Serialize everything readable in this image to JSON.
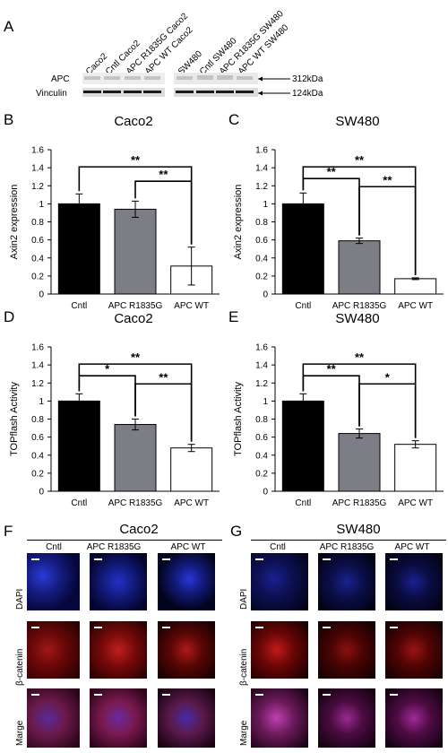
{
  "panels": {
    "A": "A",
    "B": "B",
    "C": "C",
    "D": "D",
    "E": "E",
    "F": "F",
    "G": "G"
  },
  "western_blot": {
    "lanes": [
      "Caco2",
      "Cntl Caco2",
      "APC R1835G Caco2",
      "APC WT Caco2",
      "SW480",
      "Cntl SW480",
      "APC R1835G SW480",
      "APC WT SW480"
    ],
    "rows": [
      {
        "label": "APC",
        "size": "312kDa"
      },
      {
        "label": "Vinculin",
        "size": "124kDa"
      }
    ]
  },
  "chart_data": [
    {
      "type": "bar",
      "title": "Caco2",
      "ylabel": "Axin2 expression",
      "categories": [
        "Cntl",
        "APC R1835G",
        "APC WT"
      ],
      "values": [
        1.0,
        0.94,
        0.31
      ],
      "errors": [
        0.11,
        0.09,
        0.21
      ],
      "colors": [
        "#000000",
        "#7d7d85",
        "#ffffff"
      ],
      "ylim": [
        0,
        1.6
      ],
      "yticks": [
        "0",
        "0.2",
        "0.4",
        "0.6",
        "0.8",
        "1",
        "1.2",
        "1.4",
        "1.6"
      ],
      "significance": [
        {
          "from": 0,
          "to": 2,
          "label": "**"
        },
        {
          "from": 1,
          "to": 2,
          "label": "**"
        }
      ]
    },
    {
      "type": "bar",
      "title": "SW480",
      "ylabel": "Axin2 expression",
      "categories": [
        "Cntl",
        "APC R1835G",
        "APC WT"
      ],
      "values": [
        1.0,
        0.59,
        0.17
      ],
      "errors": [
        0.12,
        0.03,
        0.01
      ],
      "colors": [
        "#000000",
        "#7d7d85",
        "#ffffff"
      ],
      "ylim": [
        0,
        1.6
      ],
      "yticks": [
        "0",
        "0.2",
        "0.4",
        "0.6",
        "0.8",
        "1",
        "1.2",
        "1.4",
        "1.6"
      ],
      "significance": [
        {
          "from": 0,
          "to": 2,
          "label": "**"
        },
        {
          "from": 0,
          "to": 1,
          "label": "**"
        },
        {
          "from": 1,
          "to": 2,
          "label": "**"
        }
      ]
    },
    {
      "type": "bar",
      "title": "Caco2",
      "ylabel": "TOPflash Activity",
      "categories": [
        "Cntl",
        "APC R1835G",
        "APC WT"
      ],
      "values": [
        1.0,
        0.74,
        0.48
      ],
      "errors": [
        0.08,
        0.06,
        0.04
      ],
      "colors": [
        "#000000",
        "#7d7d85",
        "#ffffff"
      ],
      "ylim": [
        0,
        1.6
      ],
      "yticks": [
        "0",
        "0.2",
        "0.4",
        "0.6",
        "0.8",
        "1",
        "1.2",
        "1.4",
        "1.6"
      ],
      "significance": [
        {
          "from": 0,
          "to": 2,
          "label": "**"
        },
        {
          "from": 0,
          "to": 1,
          "label": "*"
        },
        {
          "from": 1,
          "to": 2,
          "label": "**"
        }
      ]
    },
    {
      "type": "bar",
      "title": "SW480",
      "ylabel": "TOPflash Activity",
      "categories": [
        "Cntl",
        "APC R1835G",
        "APC WT"
      ],
      "values": [
        1.0,
        0.64,
        0.52
      ],
      "errors": [
        0.08,
        0.05,
        0.04
      ],
      "colors": [
        "#000000",
        "#7d7d85",
        "#ffffff"
      ],
      "ylim": [
        0,
        1.6
      ],
      "yticks": [
        "0",
        "0.2",
        "0.4",
        "0.6",
        "0.8",
        "1",
        "1.2",
        "1.4",
        "1.6"
      ],
      "significance": [
        {
          "from": 0,
          "to": 2,
          "label": "**"
        },
        {
          "from": 0,
          "to": 1,
          "label": "**"
        },
        {
          "from": 1,
          "to": 2,
          "label": "*"
        }
      ]
    }
  ],
  "microscopy": [
    {
      "title": "Caco2",
      "columns": [
        "Cntl",
        "APC R1835G",
        "APC WT"
      ],
      "rows": [
        "DAPI",
        "β-catenin",
        "Marge"
      ]
    },
    {
      "title": "SW480",
      "columns": [
        "Cntl",
        "APC R1835G",
        "APC WT"
      ],
      "rows": [
        "DAPI",
        "β-catenin",
        "Marge"
      ]
    }
  ]
}
